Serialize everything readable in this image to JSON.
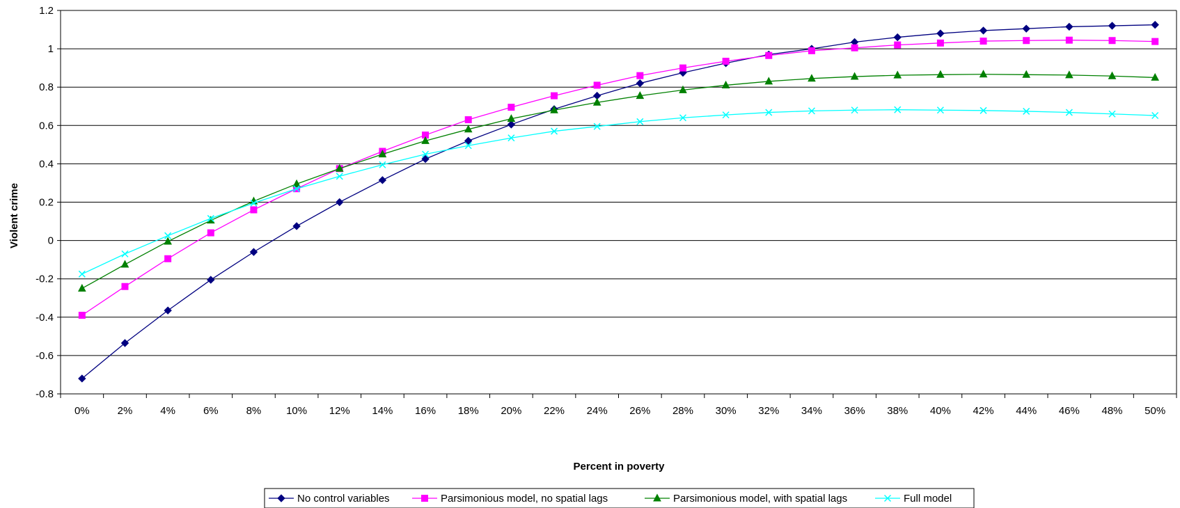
{
  "chart_data": {
    "type": "line",
    "title": "",
    "xlabel": "Percent in poverty",
    "ylabel": "Violent crime",
    "x": [
      "0%",
      "2%",
      "4%",
      "6%",
      "8%",
      "10%",
      "12%",
      "14%",
      "16%",
      "18%",
      "20%",
      "22%",
      "24%",
      "26%",
      "28%",
      "30%",
      "32%",
      "34%",
      "36%",
      "38%",
      "40%",
      "42%",
      "44%",
      "46%",
      "48%",
      "50%"
    ],
    "ylim": [
      -0.8,
      1.2
    ],
    "yticks": [
      "-0.8",
      "-0.6",
      "-0.4",
      "-0.2",
      "0",
      "0.2",
      "0.4",
      "0.6",
      "0.8",
      "1",
      "1.2"
    ],
    "grid": "horizontal",
    "legend_position": "bottom",
    "series": [
      {
        "name": "No control variables",
        "color": "#000080",
        "marker": "diamond",
        "values": [
          -0.72,
          -0.535,
          -0.365,
          -0.205,
          -0.06,
          0.075,
          0.2,
          0.315,
          0.425,
          0.52,
          0.605,
          0.685,
          0.755,
          0.82,
          0.875,
          0.925,
          0.97,
          1.0,
          1.035,
          1.06,
          1.08,
          1.095,
          1.105,
          1.115,
          1.12,
          1.125
        ]
      },
      {
        "name": "Parsimonious model, no spatial lags",
        "color": "#FF00FF",
        "marker": "square",
        "values": [
          -0.39,
          -0.24,
          -0.095,
          0.04,
          0.16,
          0.27,
          0.375,
          0.465,
          0.55,
          0.63,
          0.695,
          0.755,
          0.81,
          0.86,
          0.9,
          0.935,
          0.965,
          0.99,
          1.005,
          1.02,
          1.03,
          1.04,
          1.043,
          1.045,
          1.043,
          1.038
        ]
      },
      {
        "name": "Parsimonious model, with spatial lags",
        "color": "#008000",
        "marker": "triangle",
        "values": [
          -0.25,
          -0.125,
          -0.005,
          0.105,
          0.205,
          0.295,
          0.375,
          0.45,
          0.52,
          0.58,
          0.635,
          0.68,
          0.72,
          0.755,
          0.785,
          0.81,
          0.83,
          0.845,
          0.855,
          0.862,
          0.865,
          0.867,
          0.865,
          0.863,
          0.858,
          0.85
        ]
      },
      {
        "name": "Full model",
        "color": "#00FFFF",
        "marker": "x",
        "values": [
          -0.175,
          -0.07,
          0.025,
          0.115,
          0.195,
          0.27,
          0.335,
          0.395,
          0.45,
          0.495,
          0.535,
          0.57,
          0.595,
          0.62,
          0.64,
          0.655,
          0.668,
          0.676,
          0.68,
          0.682,
          0.68,
          0.678,
          0.674,
          0.668,
          0.66,
          0.652
        ]
      }
    ]
  }
}
